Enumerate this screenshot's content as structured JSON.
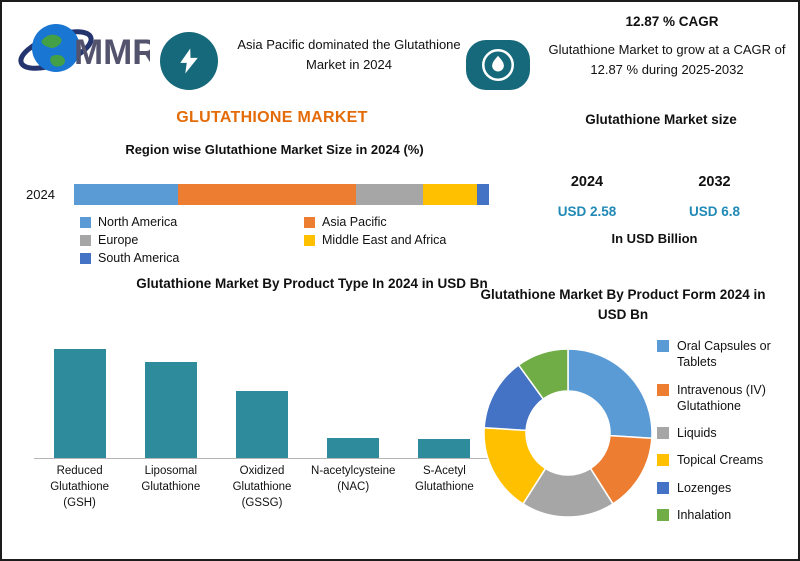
{
  "header": {
    "logo": {
      "text": "MMR",
      "icon": "globe-orbit-icon"
    },
    "highlight_left": {
      "icon": "lightning-icon",
      "text": "Asia Pacific dominated the Glutathione Market in 2024"
    },
    "highlight_right": {
      "cagr_title": "12.87 % CAGR",
      "icon": "flame-icon",
      "text": "Glutathione Market to grow at a CAGR of 12.87 % during 2025-2032"
    }
  },
  "main_title": "GLUTATHIONE MARKET",
  "market_size_panel": {
    "title": "Glutathione Market size",
    "start_year": "2024",
    "end_year": "2032",
    "start_value": "USD 2.58",
    "end_value": "USD 6.8",
    "unit": "In USD Billion",
    "value_color": "#2089b5"
  },
  "colors": {
    "accent_teal": "#16697a",
    "title_orange": "#e36c09",
    "bar_teal": "#2e8b9c"
  },
  "chart_data": [
    {
      "type": "bar",
      "variant": "horizontal-stacked",
      "title": "Region wise Glutathione Market Size in 2024 (%)",
      "categories": [
        "2024"
      ],
      "unit": "%",
      "legend_position": "below",
      "series": [
        {
          "name": "North America",
          "values": [
            25
          ],
          "color": "#5b9bd5"
        },
        {
          "name": "Asia Pacific",
          "values": [
            43
          ],
          "color": "#ed7d31"
        },
        {
          "name": "Europe",
          "values": [
            16
          ],
          "color": "#a6a6a6"
        },
        {
          "name": "Middle East and Africa",
          "values": [
            13
          ],
          "color": "#ffc000"
        },
        {
          "name": "South America",
          "values": [
            3
          ],
          "color": "#4472c4"
        }
      ]
    },
    {
      "type": "bar",
      "title": "Glutathione Market By Product Type In 2024 in USD Bn",
      "categories": [
        "Reduced Glutathione (GSH)",
        "Liposomal Glutathione",
        "Oxidized Glutathione (GSSG)",
        "N-acetylcysteine (NAC)",
        "S-Acetyl Glutathione"
      ],
      "values": [
        0.85,
        0.75,
        0.52,
        0.16,
        0.15
      ],
      "ylim": [
        0,
        1
      ],
      "ylabel": "USD Bn",
      "grid": false,
      "color": "#2e8b9c"
    },
    {
      "type": "pie",
      "variant": "donut",
      "title": "Glutathione Market By Product Form  2024 in USD Bn",
      "labels": [
        "Oral Capsules or Tablets",
        "Intravenous (IV) Glutathione",
        "Liquids",
        "Topical Creams",
        "Lozenges",
        "Inhalation"
      ],
      "values": [
        26,
        15,
        18,
        17,
        14,
        10
      ],
      "colors": [
        "#5b9bd5",
        "#ed7d31",
        "#a6a6a6",
        "#ffc000",
        "#4472c4",
        "#70ad47"
      ],
      "legend_position": "right"
    }
  ]
}
